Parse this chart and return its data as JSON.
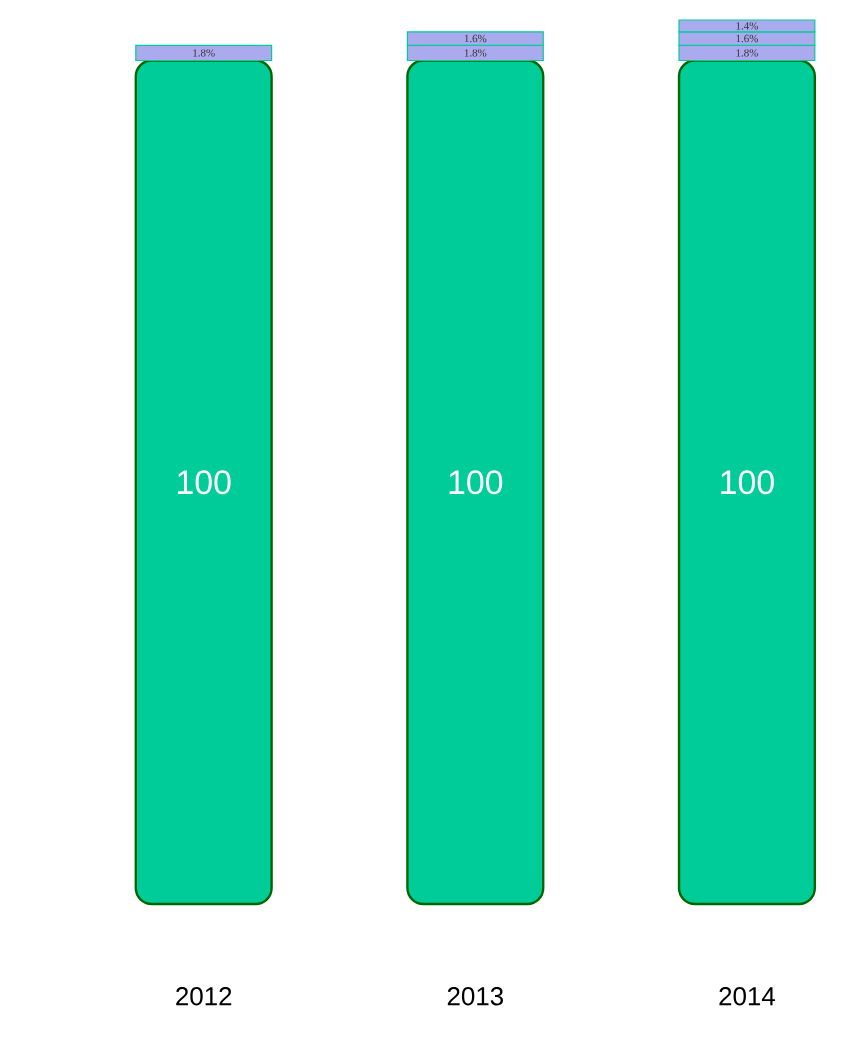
{
  "chart_data": {
    "type": "bar",
    "stacked": true,
    "categories": [
      "2012",
      "2013",
      "2014"
    ],
    "series": [
      {
        "color": "#00cc99",
        "values": [
          100,
          100,
          100
        ],
        "value_labels": [
          "100",
          "100",
          "100"
        ]
      },
      {
        "color": "#aaaaee",
        "values": [
          1.8,
          1.8,
          1.8
        ],
        "value_labels": [
          "1.8%",
          "1.8%",
          "1.8%"
        ]
      },
      {
        "color": "#aaaaee",
        "values": [
          null,
          1.6,
          1.6
        ],
        "value_labels": [
          null,
          "1.6%",
          "1.6%"
        ]
      },
      {
        "color": "#aaaaee",
        "values": [
          null,
          null,
          1.4
        ],
        "value_labels": [
          null,
          null,
          "1.4%"
        ]
      }
    ]
  }
}
